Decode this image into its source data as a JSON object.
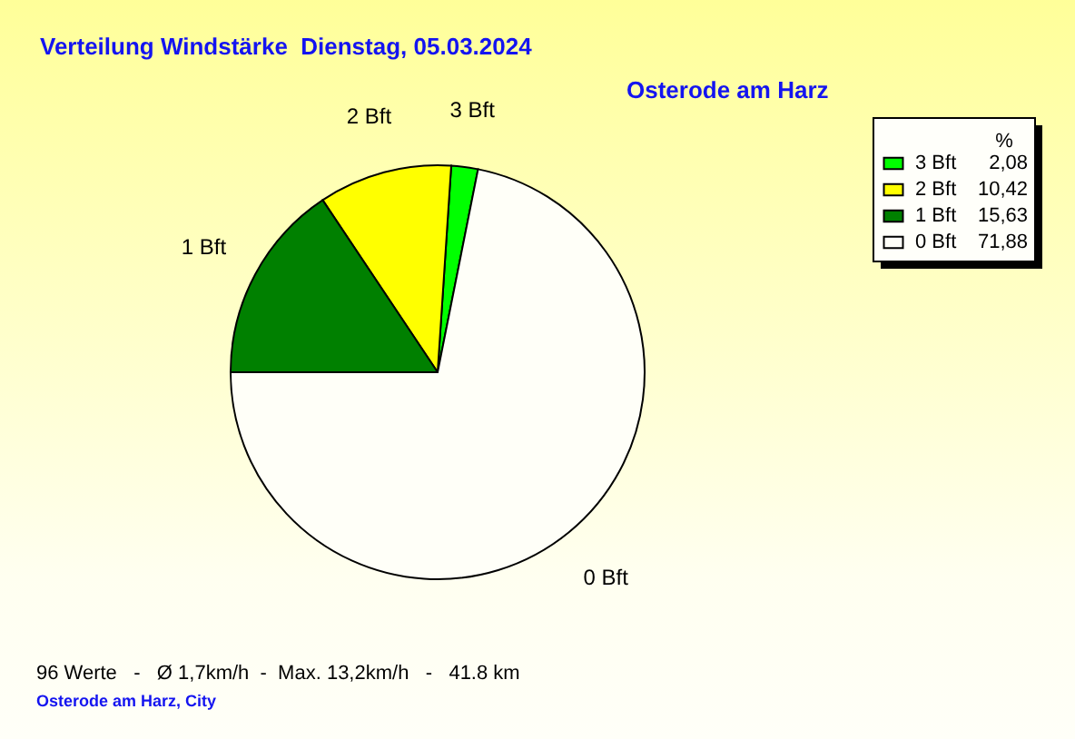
{
  "chart_data": {
    "type": "pie",
    "title": "Verteilung Windstärke  Dienstag, 05.03.2024",
    "subtitle": "Osterode am Harz",
    "categories": [
      "3 Bft",
      "2 Bft",
      "1 Bft",
      "0 Bft"
    ],
    "values": [
      2.08,
      10.42,
      15.63,
      71.88
    ],
    "value_labels": [
      "2,08",
      "10,42",
      "15,63",
      "71,88"
    ],
    "colors": [
      "#00ff00",
      "#ffff00",
      "#008000",
      "#fffff8"
    ],
    "legend": "top right",
    "legend_title": "%",
    "annotations": [
      "96 Werte   -   Ø 1,7km/h  -  Max. 13,2km/h   -   41.8 km",
      "Osterode am Harz, City"
    ]
  }
}
